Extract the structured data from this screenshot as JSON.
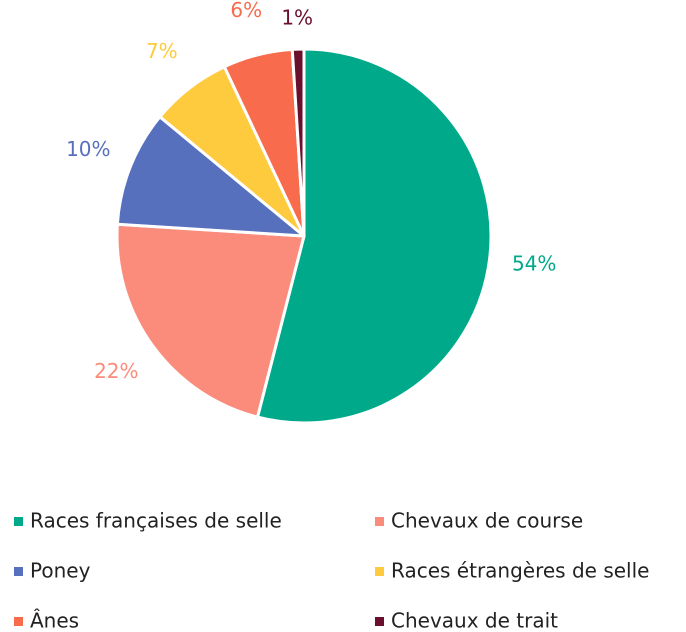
{
  "chart_data": {
    "type": "pie",
    "categories": [
      "Races françaises de selle",
      "Chevaux de course",
      "Poney",
      "Races étrangères de selle",
      "Ânes",
      "Chevaux de trait"
    ],
    "values": [
      54,
      22,
      10,
      7,
      6,
      1
    ],
    "value_labels": [
      "54%",
      "22%",
      "10%",
      "7%",
      "6%",
      "1%"
    ],
    "colors": [
      "#00a98a",
      "#fb8c7c",
      "#5770be",
      "#fecb3e",
      "#f96b4d",
      "#6b0f2e"
    ],
    "legend": "bottom"
  }
}
